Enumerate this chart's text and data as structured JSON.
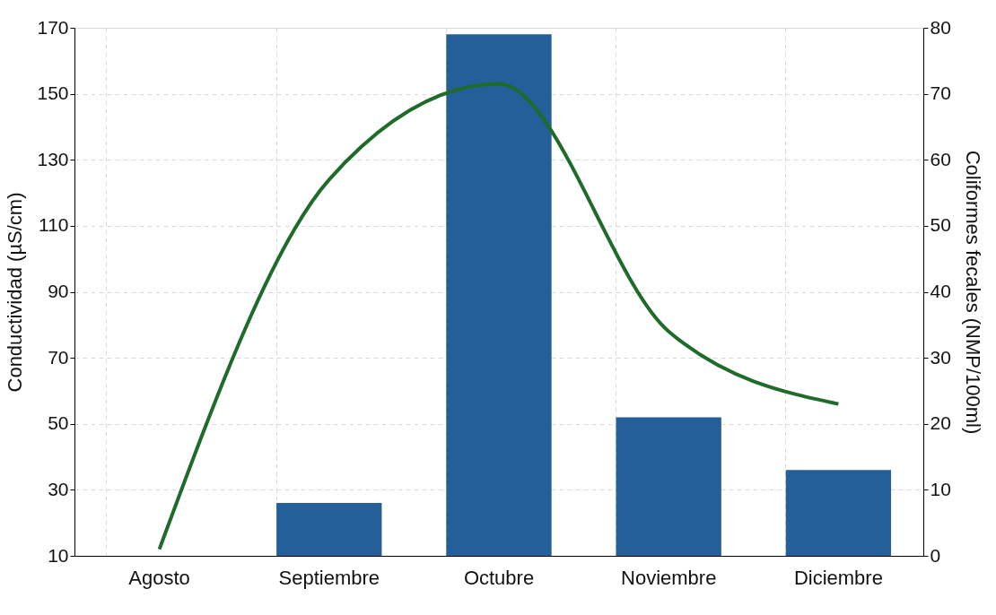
{
  "chart_data": {
    "type": "bar",
    "categories": [
      "Agosto",
      "Septiembre",
      "Octubre",
      "Noviembre",
      "Diciembre"
    ],
    "ylabel": "Conductividad (µS/cm)",
    "y2label": "Coliformes fecales (NMP/100ml)",
    "series": [
      {
        "color": "#245f99",
        "values": [
          null,
          26,
          168,
          52,
          36
        ]
      },
      {
        "type": "line",
        "axis": "y2",
        "color": "#1e6b2a",
        "values": [
          1,
          57,
          71.5,
          34,
          23
        ]
      }
    ],
    "ylim": [
      10,
      170
    ],
    "yticks": [
      10,
      30,
      50,
      70,
      90,
      110,
      130,
      150,
      170
    ],
    "y2lim": [
      0,
      80
    ],
    "y2ticks": [
      0,
      10,
      20,
      30,
      40,
      50,
      60,
      70,
      80
    ],
    "grid": true,
    "line_style": "solid",
    "marker": "none"
  }
}
